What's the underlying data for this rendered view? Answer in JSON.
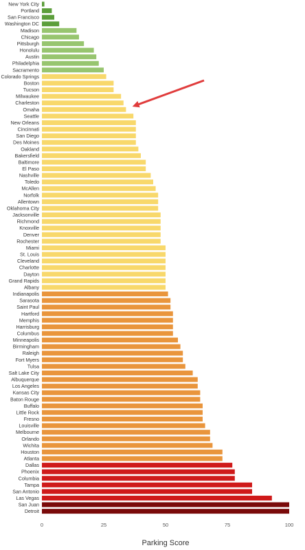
{
  "chart_data": {
    "type": "bar",
    "orientation": "horizontal",
    "xlabel": "Parking Score",
    "xlim": [
      0,
      100
    ],
    "xticks": [
      0,
      25,
      50,
      75,
      100
    ],
    "grid": false,
    "colors": {
      "dark_green": "#5c9e3b",
      "light_green": "#97c56f",
      "yellow": "#f8d86b",
      "orange": "#e9953c",
      "red": "#cf1a1a",
      "dark_red": "#7a0a0a",
      "annotation_arrow": "#e03c3c"
    },
    "annotation": {
      "type": "arrow",
      "target_category": "Omaha"
    },
    "categories": [
      "New York City",
      "Portland",
      "San Francisco",
      "Washington DC",
      "Madison",
      "Chicago",
      "Pittsburgh",
      "Honolulu",
      "Austin",
      "Philadelphia",
      "Sacramento",
      "Colorado Springs",
      "Boston",
      "Tucson",
      "Milwaukee",
      "Charleston",
      "Omaha",
      "Seattle",
      "New Orleans",
      "Cincinnati",
      "San Diego",
      "Des Moines",
      "Oakland",
      "Bakersfield",
      "Baltimore",
      "El Paso",
      "Nashville",
      "Toledo",
      "McAllen",
      "Norfolk",
      "Allentown",
      "Oklahoma City",
      "Jacksonville",
      "Richmond",
      "Knoxville",
      "Denver",
      "Rochester",
      "Miami",
      "St. Louis",
      "Cleveland",
      "Charlotte",
      "Dayton",
      "Grand Rapids",
      "Albany",
      "Indianapolis",
      "Sarasota",
      "Saint Paul",
      "Hartford",
      "Memphis",
      "Harrisburg",
      "Columbus",
      "Minneapolis",
      "Birmingham",
      "Raleigh",
      "Fort Myers",
      "Tulsa",
      "Salt Lake City",
      "Albuquerque",
      "Los Angeles",
      "Kansas City",
      "Baton Rouge",
      "Buffalo",
      "Little Rock",
      "Fresno",
      "Louisville",
      "Melbourne",
      "Orlando",
      "Wichita",
      "Houston",
      "Atlanta",
      "Dallas",
      "Phoenix",
      "Columbia",
      "Tampa",
      "San Antonio",
      "Las Vegas",
      "San Juan",
      "Detroit"
    ],
    "values": [
      1,
      4,
      5,
      7,
      14,
      15,
      17,
      21,
      22,
      23,
      25,
      26,
      29,
      29,
      32,
      33,
      34,
      37,
      38,
      38,
      38,
      38,
      39,
      40,
      42,
      42,
      44,
      45,
      46,
      47,
      47,
      47,
      48,
      48,
      48,
      48,
      48,
      50,
      50,
      50,
      50,
      50,
      50,
      50,
      51,
      52,
      52,
      53,
      53,
      53,
      53,
      55,
      56,
      57,
      57,
      58,
      61,
      63,
      63,
      64,
      64,
      65,
      65,
      65,
      66,
      68,
      68,
      69,
      73,
      73,
      77,
      78,
      78,
      85,
      85,
      93,
      100,
      100
    ],
    "color_groups": [
      "dark_green",
      "dark_green",
      "dark_green",
      "dark_green",
      "light_green",
      "light_green",
      "light_green",
      "light_green",
      "light_green",
      "light_green",
      "light_green",
      "yellow",
      "yellow",
      "yellow",
      "yellow",
      "yellow",
      "yellow",
      "yellow",
      "yellow",
      "yellow",
      "yellow",
      "yellow",
      "yellow",
      "yellow",
      "yellow",
      "yellow",
      "yellow",
      "yellow",
      "yellow",
      "yellow",
      "yellow",
      "yellow",
      "yellow",
      "yellow",
      "yellow",
      "yellow",
      "yellow",
      "yellow",
      "yellow",
      "yellow",
      "yellow",
      "yellow",
      "yellow",
      "yellow",
      "orange",
      "orange",
      "orange",
      "orange",
      "orange",
      "orange",
      "orange",
      "orange",
      "orange",
      "orange",
      "orange",
      "orange",
      "orange",
      "orange",
      "orange",
      "orange",
      "orange",
      "orange",
      "orange",
      "orange",
      "orange",
      "orange",
      "orange",
      "orange",
      "orange",
      "orange",
      "red",
      "red",
      "red",
      "red",
      "red",
      "red",
      "dark_red",
      "dark_red"
    ]
  }
}
